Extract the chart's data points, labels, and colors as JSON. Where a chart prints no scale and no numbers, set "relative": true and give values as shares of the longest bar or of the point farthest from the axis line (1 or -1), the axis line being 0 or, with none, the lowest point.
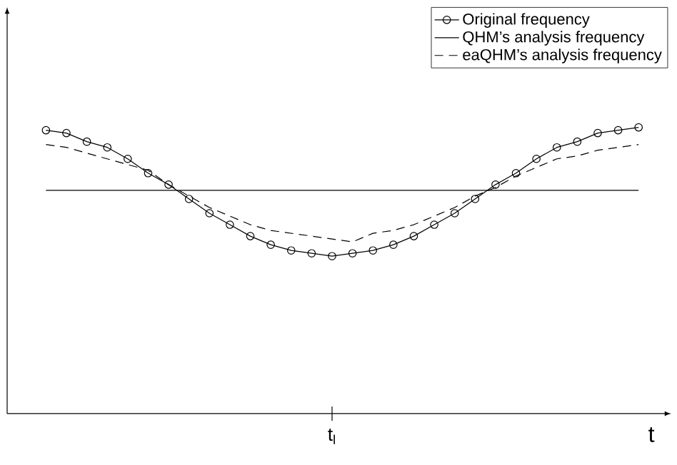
{
  "chart_data": {
    "type": "line",
    "relative": true,
    "xlabel": "t",
    "legend": "top right",
    "categories": [
      null,
      null,
      null,
      null,
      null,
      null,
      null,
      null,
      null,
      null,
      null,
      null,
      null,
      null,
      null,
      null,
      null,
      null,
      null,
      null,
      null,
      null,
      null,
      null,
      null,
      null,
      null,
      null,
      null,
      null
    ],
    "annotations": [
      "t$_{l}$"
    ],
    "series": [
      {
        "name": "Original frequency",
        "color": "#000000",
        "marker": "circle",
        "line_style": "solid",
        "values": [
          0.99,
          0.98,
          0.95,
          0.93,
          0.89,
          0.84,
          0.8,
          0.75,
          0.7,
          0.66,
          0.62,
          0.59,
          0.57,
          0.56,
          0.55,
          0.56,
          0.57,
          0.59,
          0.62,
          0.66,
          0.7,
          0.75,
          0.8,
          0.84,
          0.89,
          0.93,
          0.95,
          0.98,
          0.99,
          1.0
        ]
      },
      {
        "name": "QHM’s analysis frequency",
        "color": "#000000",
        "marker": "none",
        "line_style": "solid",
        "values": [
          0.78,
          0.78,
          0.78,
          0.78,
          0.78,
          0.78,
          0.78,
          0.78,
          0.78,
          0.78,
          0.78,
          0.78,
          0.78,
          0.78,
          0.78,
          0.78,
          0.78,
          0.78,
          0.78,
          0.78,
          0.78,
          0.78,
          0.78,
          0.78,
          0.78,
          0.78,
          0.78,
          0.78,
          0.78,
          0.78
        ]
      },
      {
        "name": "eaQHM’s analysis frequency",
        "color": "#000000",
        "marker": "none",
        "line_style": "dashed",
        "values": [
          0.94,
          0.93,
          0.91,
          0.89,
          0.87,
          0.85,
          0.8,
          0.76,
          0.72,
          0.69,
          0.66,
          0.64,
          0.63,
          0.62,
          0.61,
          0.6,
          0.63,
          0.64,
          0.66,
          0.69,
          0.72,
          0.76,
          0.79,
          0.83,
          0.86,
          0.89,
          0.9,
          0.92,
          0.93,
          0.94
        ]
      }
    ]
  }
}
